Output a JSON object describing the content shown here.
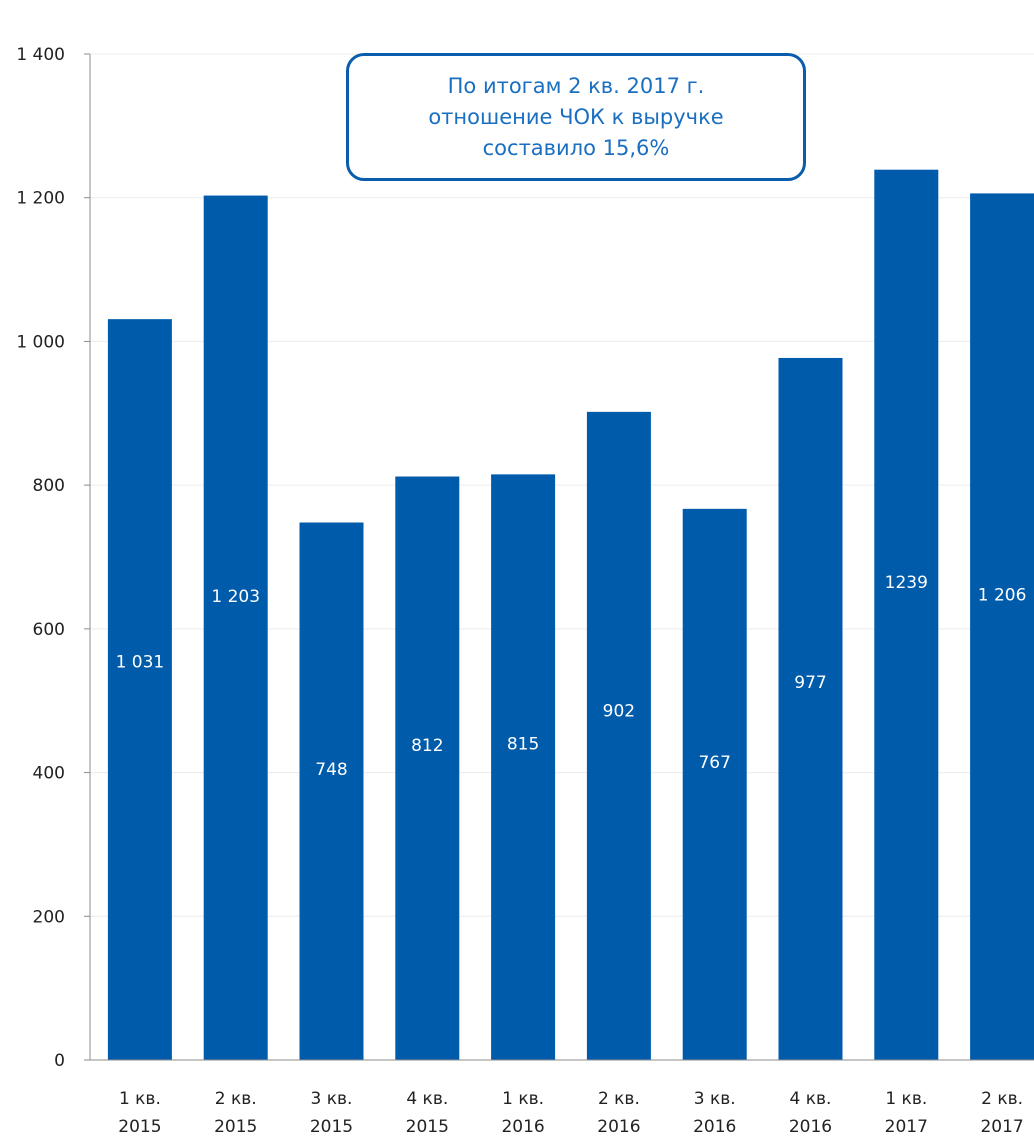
{
  "chart_data": {
    "type": "bar",
    "categories": [
      [
        "1 кв.",
        "2015"
      ],
      [
        "2 кв.",
        "2015"
      ],
      [
        "3 кв.",
        "2015"
      ],
      [
        "4 кв.",
        "2015"
      ],
      [
        "1 кв.",
        "2016"
      ],
      [
        "2 кв.",
        "2016"
      ],
      [
        "3 кв.",
        "2016"
      ],
      [
        "4 кв.",
        "2016"
      ],
      [
        "1 кв.",
        "2017"
      ],
      [
        "2 кв.",
        "2017"
      ]
    ],
    "values": [
      1031,
      1203,
      748,
      812,
      815,
      902,
      767,
      977,
      1239,
      1206
    ],
    "data_labels": [
      "1 031",
      "1 203",
      "748",
      "812",
      "815",
      "902",
      "767",
      "977",
      "1239",
      "1 206"
    ],
    "ylim": [
      0,
      1400
    ],
    "yticks": [
      0,
      200,
      400,
      600,
      800,
      1000,
      1200,
      1400
    ],
    "ytick_labels": [
      "0",
      "200",
      "400",
      "600",
      "800",
      "1 000",
      "1 200",
      "1 400"
    ],
    "grid": true,
    "bar_color": "#005bab",
    "annotation": {
      "lines": [
        "По итогам 2 кв. 2017 г.",
        "отношение ЧОК к выручке",
        "составило 15,6%"
      ],
      "border_color": "#0a5cac",
      "text_color": "#1a6fc0"
    }
  }
}
